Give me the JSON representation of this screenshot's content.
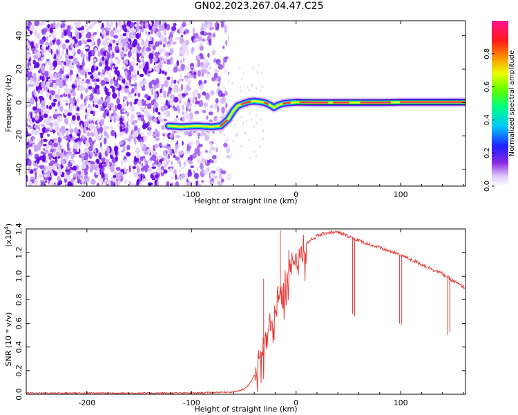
{
  "title": "GN02.2023.267.04.47.C25",
  "colors": {
    "snr_line": "#e53935",
    "speckle": "#7d1fe8",
    "axis": "#000000"
  },
  "chart_data": [
    {
      "type": "heatmap",
      "name": "spectrogram",
      "xlabel": "Height of straight line (km)",
      "ylabel": "Frequency (Hz)",
      "xlim": [
        -258,
        162
      ],
      "ylim": [
        -50,
        49
      ],
      "xticks": [
        -200,
        -100,
        0,
        100
      ],
      "xtick_labels": [
        "-200",
        "-100",
        "0",
        "100"
      ],
      "yticks": [
        -40,
        -20,
        0,
        20,
        40
      ],
      "ytick_labels": [
        "-40",
        "-20",
        "0",
        "20",
        "40"
      ],
      "noise_end_km": -70,
      "track": {
        "description": "Doppler frequency of carrier vs height",
        "x": [
          -122,
          -110,
          -95,
          -80,
          -72,
          -65,
          -60,
          -56,
          -50,
          -45,
          -40,
          -35,
          -30,
          -25,
          -21,
          -17,
          -12,
          -5,
          0,
          20,
          40,
          60,
          80,
          100,
          120,
          162
        ],
        "y": [
          -14,
          -14.5,
          -14,
          -14.5,
          -14,
          -10,
          -5,
          -2,
          -0.5,
          0.5,
          0.8,
          0.5,
          0,
          -1.5,
          -3,
          -1.5,
          -0.5,
          0,
          0.2,
          0,
          0,
          0,
          0,
          0.2,
          0.2,
          0.2
        ],
        "peak_amplitude": 1.0
      },
      "colorbar": {
        "label": "Normalized spectral amplitude",
        "ticks": [
          0.0,
          0.2,
          0.4,
          0.6,
          0.8
        ],
        "tick_labels": [
          "0.0",
          "0.2",
          "0.4",
          "0.6",
          "0.8"
        ],
        "range": [
          0,
          1
        ]
      }
    },
    {
      "type": "line",
      "name": "snr",
      "xlabel": "Height of straight line (km)",
      "ylabel": "SNR (10 * v/v)",
      "scale_label": "(x10",
      "scale_exp": "4",
      "scale_close": ")",
      "xlim": [
        -258,
        162
      ],
      "ylim": [
        0,
        1.4
      ],
      "xticks": [
        -200,
        -100,
        0,
        100
      ],
      "xtick_labels": [
        "-200",
        "-100",
        "0",
        "100"
      ],
      "yticks": [
        0.0,
        0.2,
        0.4,
        0.6,
        0.8,
        1.0,
        1.2,
        1.4
      ],
      "ytick_labels": [
        "0.0",
        "0.2",
        "0.4",
        "0.6",
        "0.8",
        "1.0",
        "1.2",
        "1.4"
      ],
      "envelope": {
        "x": [
          -258,
          -150,
          -100,
          -60,
          -50,
          -45,
          -40,
          -36,
          -33,
          -30,
          -25,
          -20,
          -15,
          -10,
          -5,
          0,
          5,
          10,
          20,
          30,
          40,
          50,
          60,
          80,
          100,
          120,
          140,
          150,
          162
        ],
        "y": [
          0.01,
          0.01,
          0.01,
          0.02,
          0.04,
          0.08,
          0.16,
          0.25,
          0.32,
          0.48,
          0.6,
          0.72,
          0.85,
          0.95,
          1.05,
          1.15,
          1.22,
          1.28,
          1.34,
          1.37,
          1.37,
          1.34,
          1.3,
          1.24,
          1.18,
          1.1,
          1.02,
          0.96,
          0.9
        ]
      },
      "spikes": [
        {
          "x": -31,
          "y": 0.98
        },
        {
          "x": -15,
          "y": 1.39
        },
        {
          "x": -7,
          "y": 1.22
        },
        {
          "x": 54,
          "y": 0.68
        },
        {
          "x": 56,
          "y": 0.66
        },
        {
          "x": 99,
          "y": 0.6
        },
        {
          "x": 101,
          "y": 0.59
        },
        {
          "x": 145,
          "y": 0.5
        },
        {
          "x": 147,
          "y": 0.53
        }
      ]
    }
  ]
}
